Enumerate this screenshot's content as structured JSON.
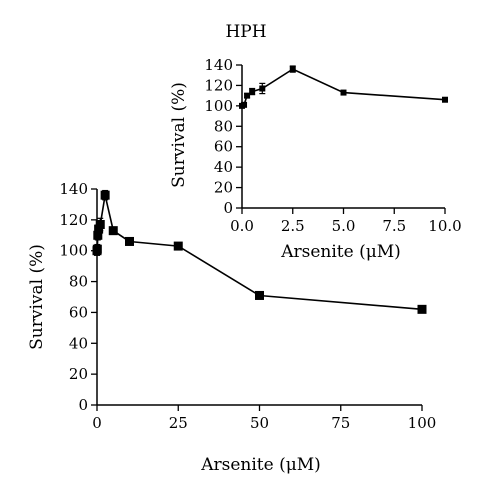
{
  "chart_data": [
    {
      "type": "line",
      "title": "",
      "xlabel": "Arsenite (μM)",
      "ylabel": "Survival (%)",
      "xlim": [
        0,
        100
      ],
      "ylim": [
        0,
        140
      ],
      "xticks": [
        0,
        25,
        50,
        75,
        100
      ],
      "yticks": [
        0,
        20,
        40,
        60,
        80,
        100,
        120,
        140
      ],
      "grid": false,
      "marker": "square",
      "color": "#000000",
      "series": [
        {
          "x": [
            0,
            0.1,
            0.25,
            0.5,
            1,
            2.5,
            5,
            10,
            25,
            50,
            100
          ],
          "y": [
            100,
            101,
            110,
            114,
            117,
            136,
            113,
            106,
            103,
            71,
            62
          ],
          "err": [
            3,
            3,
            3,
            3,
            4,
            3,
            2,
            2,
            2,
            2,
            2
          ]
        }
      ]
    },
    {
      "type": "line",
      "title": "HPH",
      "xlabel": "Arsenite (μM)",
      "ylabel": "Survival (%)",
      "xlim": [
        0,
        10
      ],
      "ylim": [
        0,
        140
      ],
      "xticks": [
        "0.0",
        "2.5",
        "5.0",
        "7.5",
        "10.0"
      ],
      "yticks": [
        0,
        20,
        40,
        60,
        80,
        100,
        120,
        140
      ],
      "grid": false,
      "marker": "square",
      "color": "#000000",
      "series": [
        {
          "x": [
            0,
            0.1,
            0.25,
            0.5,
            1,
            2.5,
            5,
            10
          ],
          "y": [
            100,
            101,
            110,
            114,
            117,
            136,
            113,
            106
          ],
          "err": [
            2,
            2,
            2,
            3,
            5,
            3,
            2,
            2
          ]
        }
      ]
    }
  ]
}
